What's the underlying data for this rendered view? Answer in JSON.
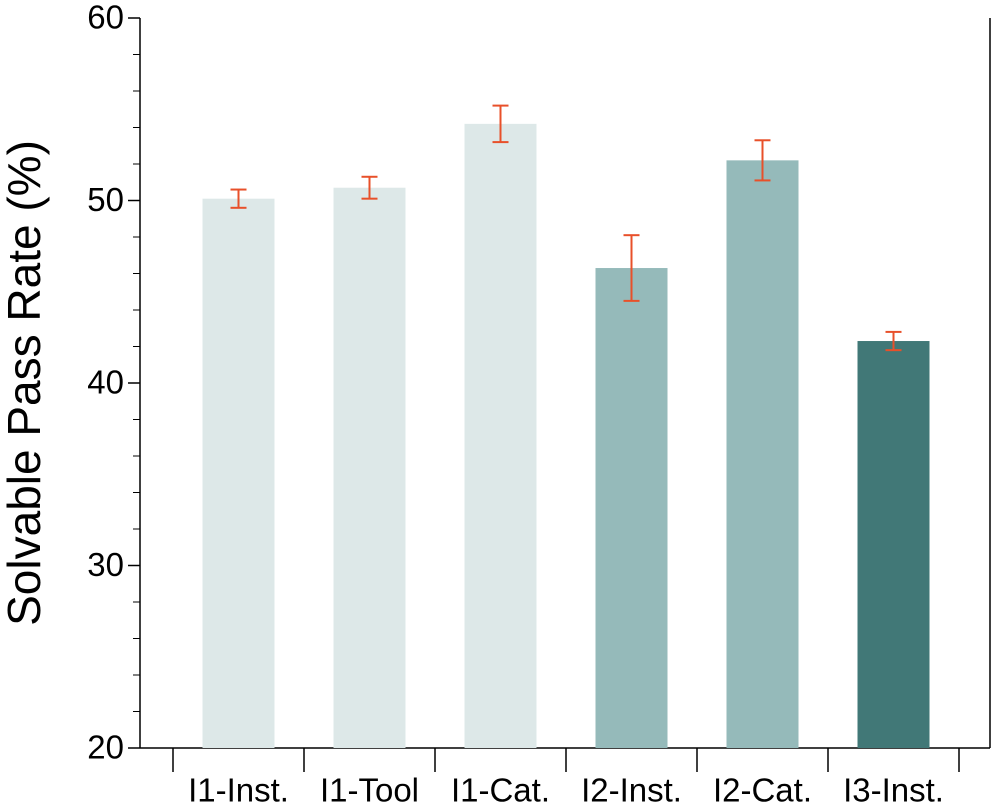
{
  "chart_data": {
    "type": "bar",
    "ylabel": "Solvable Pass Rate (%)",
    "categories": [
      "I1-Inst.",
      "I1-Tool",
      "I1-Cat.",
      "I2-Inst.",
      "I2-Cat.",
      "I3-Inst."
    ],
    "values": [
      50.1,
      50.7,
      54.2,
      46.3,
      52.2,
      42.3
    ],
    "errors": [
      0.5,
      0.6,
      1.0,
      1.8,
      1.1,
      0.5
    ],
    "colors": [
      "#dde8e8",
      "#dde8e8",
      "#dde8e8",
      "#95baba",
      "#95baba",
      "#417877"
    ],
    "error_color": "#e8502a",
    "ylim": [
      20,
      60
    ],
    "yticks": [
      20,
      30,
      40,
      50,
      60
    ],
    "yminorticks": [
      22,
      24,
      26,
      28,
      32,
      34,
      36,
      38,
      42,
      44,
      46,
      48,
      52,
      54,
      56,
      58
    ],
    "grid": false
  }
}
